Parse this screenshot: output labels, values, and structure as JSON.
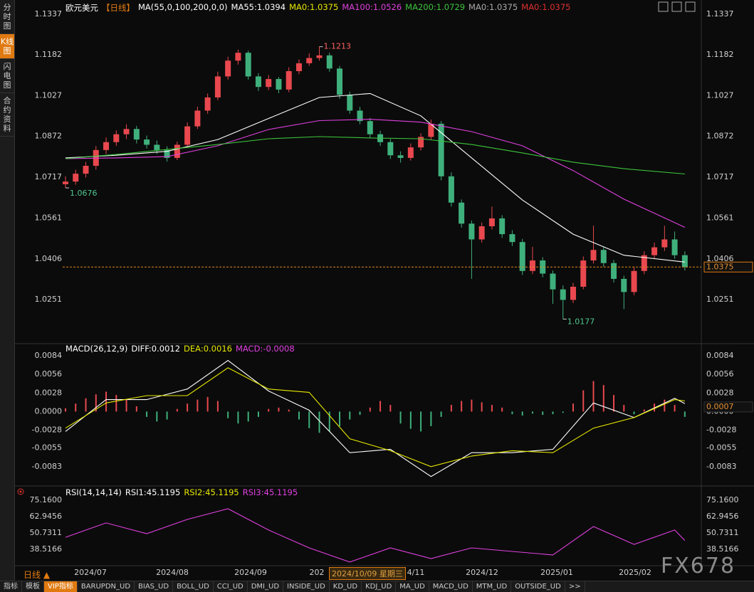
{
  "sidebar": [
    "分时图",
    "K线图",
    "闪电图",
    "合约资料"
  ],
  "chart_data": [
    {
      "type": "candlestick",
      "symbol": "欧元美元",
      "period": "【日线】",
      "indicator": "MA(55,0,100,200,0,0)",
      "up_color": "#e8484e",
      "down_color": "#3fb07c",
      "ohlc": [
        [
          1.069,
          1.072,
          1.0676,
          1.07
        ],
        [
          1.07,
          1.0745,
          1.0688,
          1.073
        ],
        [
          1.073,
          1.0775,
          1.0715,
          1.076
        ],
        [
          1.076,
          1.0835,
          1.0745,
          1.082
        ],
        [
          1.082,
          1.0868,
          1.0805,
          1.085
        ],
        [
          1.085,
          1.0895,
          1.0836,
          1.088
        ],
        [
          1.088,
          1.0918,
          1.0862,
          1.09
        ],
        [
          1.09,
          1.0912,
          1.0845,
          1.086
        ],
        [
          1.086,
          1.0875,
          1.0826,
          1.084
        ],
        [
          1.084,
          1.0856,
          1.0805,
          1.082
        ],
        [
          1.082,
          1.0834,
          1.0776,
          1.079
        ],
        [
          1.079,
          1.0852,
          1.0782,
          1.084
        ],
        [
          1.084,
          1.0925,
          1.083,
          1.091
        ],
        [
          1.091,
          1.0985,
          1.09,
          1.097
        ],
        [
          1.097,
          1.1035,
          1.0958,
          1.102
        ],
        [
          1.102,
          1.1118,
          1.101,
          1.11
        ],
        [
          1.11,
          1.1175,
          1.1088,
          1.116
        ],
        [
          1.116,
          1.1202,
          1.1145,
          1.119
        ],
        [
          1.119,
          1.1198,
          1.1088,
          1.11
        ],
        [
          1.11,
          1.1112,
          1.1045,
          1.106
        ],
        [
          1.106,
          1.1105,
          1.1048,
          1.109
        ],
        [
          1.109,
          1.1098,
          1.1036,
          1.105
        ],
        [
          1.105,
          1.1135,
          1.104,
          1.112
        ],
        [
          1.112,
          1.1165,
          1.1108,
          1.115
        ],
        [
          1.115,
          1.1188,
          1.114,
          1.117
        ],
        [
          1.117,
          1.1213,
          1.116,
          1.118
        ],
        [
          1.118,
          1.119,
          1.1118,
          1.113
        ],
        [
          1.113,
          1.114,
          1.1015,
          1.103
        ],
        [
          1.103,
          1.1042,
          1.0958,
          1.097
        ],
        [
          1.097,
          1.0984,
          1.0918,
          1.093
        ],
        [
          1.093,
          1.0942,
          1.0866,
          1.088
        ],
        [
          1.088,
          1.0893,
          1.0836,
          1.085
        ],
        [
          1.085,
          1.0862,
          1.0786,
          1.08
        ],
        [
          1.08,
          1.0815,
          1.0772,
          1.079
        ],
        [
          1.079,
          1.0845,
          1.078,
          1.083
        ],
        [
          1.083,
          1.0884,
          1.0818,
          1.087
        ],
        [
          1.087,
          1.0936,
          1.086,
          1.092
        ],
        [
          1.092,
          1.093,
          1.0705,
          1.072
        ],
        [
          1.072,
          1.0735,
          1.0605,
          1.062
        ],
        [
          1.062,
          1.0632,
          1.0525,
          1.054
        ],
        [
          1.054,
          1.0552,
          1.033,
          1.048
        ],
        [
          1.048,
          1.0545,
          1.0468,
          1.053
        ],
        [
          1.053,
          1.0605,
          1.0518,
          1.056
        ],
        [
          1.056,
          1.0572,
          1.0486,
          1.05
        ],
        [
          1.05,
          1.0515,
          1.0455,
          1.047
        ],
        [
          1.047,
          1.0482,
          1.0345,
          1.036
        ],
        [
          1.036,
          1.0452,
          1.0348,
          1.04
        ],
        [
          1.04,
          1.0412,
          1.0336,
          1.035
        ],
        [
          1.035,
          1.0362,
          1.0235,
          1.029
        ],
        [
          1.029,
          1.0305,
          1.0177,
          1.025
        ],
        [
          1.025,
          1.0315,
          1.0238,
          1.03
        ],
        [
          1.03,
          1.0415,
          1.029,
          1.04
        ],
        [
          1.04,
          1.0532,
          1.0388,
          1.044
        ],
        [
          1.044,
          1.0452,
          1.0376,
          1.039
        ],
        [
          1.039,
          1.0402,
          1.0316,
          1.033
        ],
        [
          1.033,
          1.0342,
          1.0215,
          1.028
        ],
        [
          1.028,
          1.0375,
          1.0268,
          1.036
        ],
        [
          1.036,
          1.0435,
          1.0348,
          1.042
        ],
        [
          1.042,
          1.0468,
          1.0408,
          1.045
        ],
        [
          1.045,
          1.0532,
          1.0436,
          1.048
        ],
        [
          1.048,
          1.051,
          1.0406,
          1.042
        ],
        [
          1.042,
          1.0435,
          1.0362,
          1.0375
        ]
      ],
      "series": [
        {
          "name": "MA55:1.0394",
          "color": "#ffffff",
          "x": [
            0,
            5,
            10,
            15,
            20,
            25,
            30,
            35,
            40,
            45,
            50,
            55,
            61
          ],
          "values": [
            1.079,
            1.08,
            1.0815,
            1.086,
            1.094,
            1.102,
            1.1035,
            1.095,
            1.079,
            1.063,
            1.05,
            1.042,
            1.0394
          ]
        },
        {
          "name": "MA0:1.0375",
          "color": "#e8e800"
        },
        {
          "name": "MA100:1.0526",
          "color": "#e040e0",
          "x": [
            0,
            5,
            10,
            15,
            20,
            25,
            30,
            35,
            40,
            45,
            50,
            55,
            61
          ],
          "values": [
            1.0787,
            1.079,
            1.0795,
            1.0836,
            1.0898,
            1.0932,
            1.0937,
            1.0926,
            1.089,
            1.0836,
            1.0742,
            1.0633,
            1.0526
          ]
        },
        {
          "name": "MA200:1.0729",
          "color": "#3cc43c",
          "x": [
            0,
            5,
            10,
            15,
            20,
            25,
            30,
            35,
            40,
            45,
            50,
            55,
            61
          ],
          "values": [
            1.0787,
            1.0803,
            1.0822,
            1.0841,
            1.0863,
            1.0871,
            1.0866,
            1.0863,
            1.0841,
            1.0809,
            1.0774,
            1.0749,
            1.0729
          ]
        },
        {
          "name": "MA0:1.0375",
          "color": "#aaaaaa"
        },
        {
          "name": "MA0:1.0375",
          "color": "#e03030"
        }
      ],
      "ylim": [
        1.0097,
        1.1369
      ],
      "yticks": [
        1.1337,
        1.1182,
        1.1027,
        1.0872,
        1.0717,
        1.0561,
        1.0406,
        1.0251
      ]
    },
    {
      "type": "macd",
      "title": "MACD(26,12,9)",
      "histogram": [
        0.0005,
        0.0012,
        0.002,
        0.0026,
        0.003,
        0.0025,
        0.0018,
        0.0008,
        -0.0008,
        -0.0015,
        -0.0012,
        0.0004,
        0.0012,
        0.0018,
        0.0022,
        0.0016,
        -0.001,
        -0.0018,
        -0.0015,
        -0.0008,
        0.0004,
        0.0006,
        0.0003,
        -0.0012,
        -0.0025,
        -0.0032,
        -0.003,
        -0.0022,
        -0.0012,
        -0.0005,
        0.0006,
        0.0016,
        0.001,
        -0.0018,
        -0.0026,
        -0.003,
        -0.0022,
        -0.0008,
        0.001,
        0.0016,
        0.0018,
        0.0014,
        0.001,
        0.0006,
        -0.0004,
        -0.0006,
        -0.0003,
        -0.0005,
        -0.0004,
        -0.0002,
        0.0012,
        0.0032,
        0.0046,
        0.004,
        0.0025,
        0.001,
        -0.0004,
        0.0003,
        0.0012,
        0.0018,
        0.001,
        -0.0008
      ],
      "up_color": "#e8484e",
      "down_color": "#3fb07c",
      "series": [
        {
          "name": "DIFF:0.0012",
          "color": "#ffffff",
          "x": [
            0,
            4,
            8,
            12,
            16,
            20,
            24,
            28,
            32,
            36,
            40,
            44,
            48,
            52,
            56,
            60,
            61
          ],
          "values": [
            -0.003,
            0.0018,
            0.0018,
            0.0034,
            0.0077,
            0.0031,
            0.0002,
            -0.0062,
            -0.0057,
            -0.0098,
            -0.0062,
            -0.0062,
            -0.0057,
            0.0013,
            -0.0009,
            0.002,
            0.0012
          ]
        },
        {
          "name": "DEA:0.0016",
          "color": "#e8e800",
          "x": [
            0,
            4,
            8,
            12,
            16,
            20,
            24,
            28,
            32,
            36,
            40,
            44,
            48,
            52,
            56,
            60,
            61
          ],
          "values": [
            -0.0025,
            0.0013,
            0.0024,
            0.0024,
            0.0066,
            0.0034,
            0.0029,
            -0.0041,
            -0.0059,
            -0.0083,
            -0.0067,
            -0.0059,
            -0.0062,
            -0.0025,
            -0.0009,
            0.0018,
            0.0016
          ]
        },
        {
          "name": "MACD:-0.0008",
          "color": "#e040e0"
        }
      ],
      "current_value": 0.0007,
      "ylim": [
        -0.0109,
        0.0097
      ],
      "yticks": [
        0.0084,
        0.0056,
        0.0028,
        {
          "value": 0,
          "label": "0.0000"
        },
        -0.0028,
        -0.0055,
        -0.0083
      ]
    },
    {
      "type": "line",
      "title": "RSI(14,14,14)",
      "series": [
        {
          "name": "RSI1:45.1195",
          "color": "#ffffff"
        },
        {
          "name": "RSI2:45.1195",
          "color": "#e8e800"
        },
        {
          "name": "RSI3:45.1195",
          "color": "#e040e0",
          "x": [
            0,
            4,
            8,
            12,
            16,
            20,
            24,
            28,
            32,
            36,
            40,
            44,
            48,
            52,
            56,
            60,
            61
          ],
          "values": [
            47.5,
            58.2,
            50.2,
            60.8,
            68.8,
            52.9,
            39.6,
            29.0,
            39.6,
            31.6,
            39.6,
            36.9,
            34.3,
            55.5,
            42.2,
            52.9,
            45.12
          ]
        }
      ],
      "ylim": [
        26.3,
        79.41
      ],
      "yticks": [
        {
          "value": 75.16,
          "label": "75.1600"
        },
        62.9456,
        50.7311,
        38.5166
      ]
    }
  ],
  "x_labels": [
    "2024/07",
    "2024/08",
    "2024/09",
    "202",
    "4/11",
    "2024/12",
    "2025/01",
    "2025/02"
  ],
  "crosshair_label": "2024/10/09 星期三",
  "period_button": "日线 ▲",
  "toolbar": [
    "指标",
    "模板",
    "VIP指标",
    "BARUPDN_UD",
    "BIAS_UD",
    "BOLL_UD",
    "CCI_UD",
    "DMI_UD",
    "INSIDE_UD",
    "KD_UD",
    "KDJ_UD",
    "MA_UD",
    "MACD_UD",
    "MTM_UD",
    "OUTSIDE_UD",
    ">>"
  ],
  "watermark": "FX678"
}
